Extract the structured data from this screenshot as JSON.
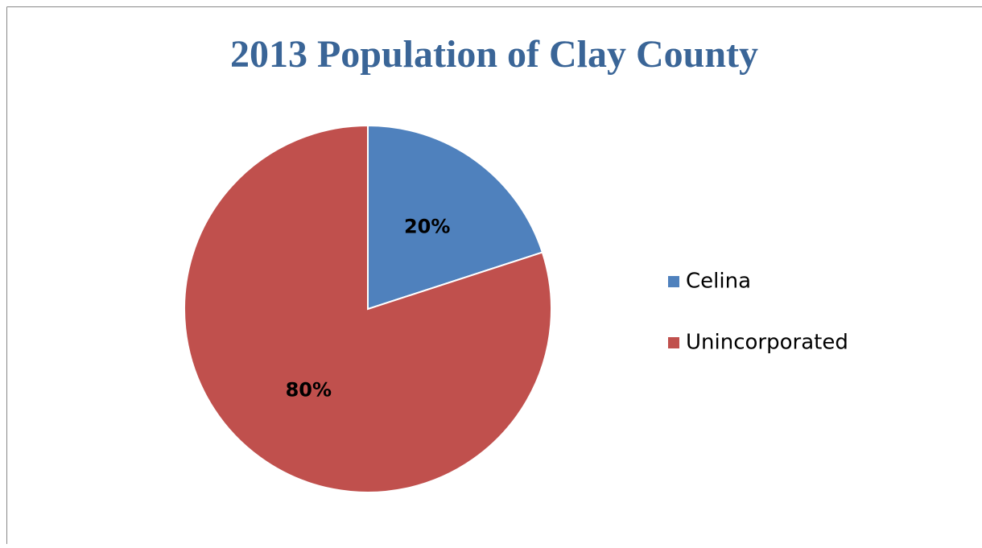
{
  "chart_data": {
    "type": "pie",
    "title": "2013 Population of Clay County",
    "categories": [
      "Celina",
      "Unincorporated"
    ],
    "values": [
      20,
      80
    ],
    "value_labels": [
      "20%",
      "80%"
    ],
    "colors": [
      "#4f81bd",
      "#c0504d"
    ],
    "legend": "right"
  }
}
